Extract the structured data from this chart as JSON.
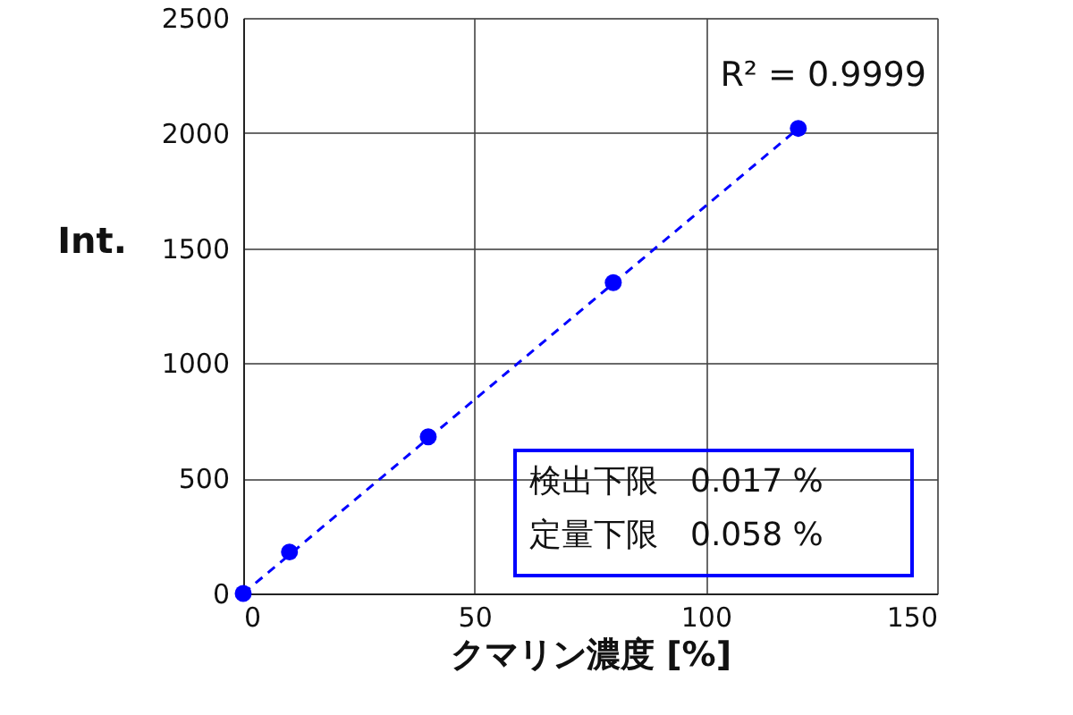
{
  "chart_data": {
    "type": "scatter",
    "xlabel": "クマリン濃度 [%]",
    "ylabel": "Int.",
    "xlim": [
      0,
      150
    ],
    "xticks": [
      0,
      50,
      100,
      150
    ],
    "ylim": [
      0,
      2500
    ],
    "yticks": [
      0,
      500,
      1000,
      1500,
      2000,
      2500
    ],
    "grid": true,
    "series": [
      {
        "color": "#0000ff",
        "marker": "circle",
        "x": [
          0,
          10,
          40,
          80,
          120
        ],
        "values": [
          0,
          180,
          680,
          1350,
          2020
        ]
      },
      {
        "type": "line",
        "color": "#0000ff",
        "line_style": "dashed",
        "marker": "none",
        "x": [
          0,
          120
        ],
        "values": [
          0,
          2020
        ]
      }
    ],
    "annotations": [
      "R² = 0.9999",
      "検出下限　0.017 %",
      "定量下限　0.058 %"
    ]
  }
}
